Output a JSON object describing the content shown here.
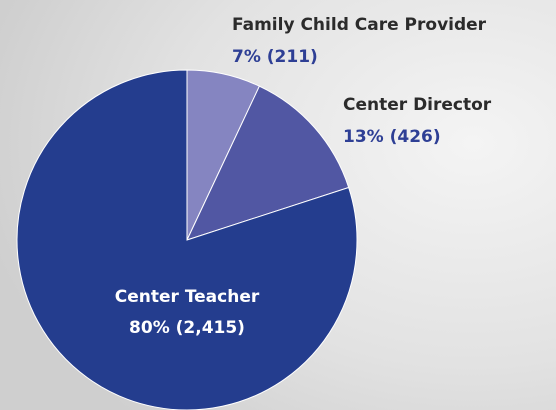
{
  "chart_data": {
    "type": "pie",
    "categories": [
      "Family Child Care Provider",
      "Center Director",
      "Center Teacher"
    ],
    "values": [
      7,
      13,
      80
    ],
    "counts": [
      211,
      426,
      2415
    ],
    "value_labels": [
      "7% (211)",
      "13% (426)",
      "80% (2,415)"
    ],
    "colors": [
      "#8585c1",
      "#5157a3",
      "#243d8e"
    ]
  }
}
